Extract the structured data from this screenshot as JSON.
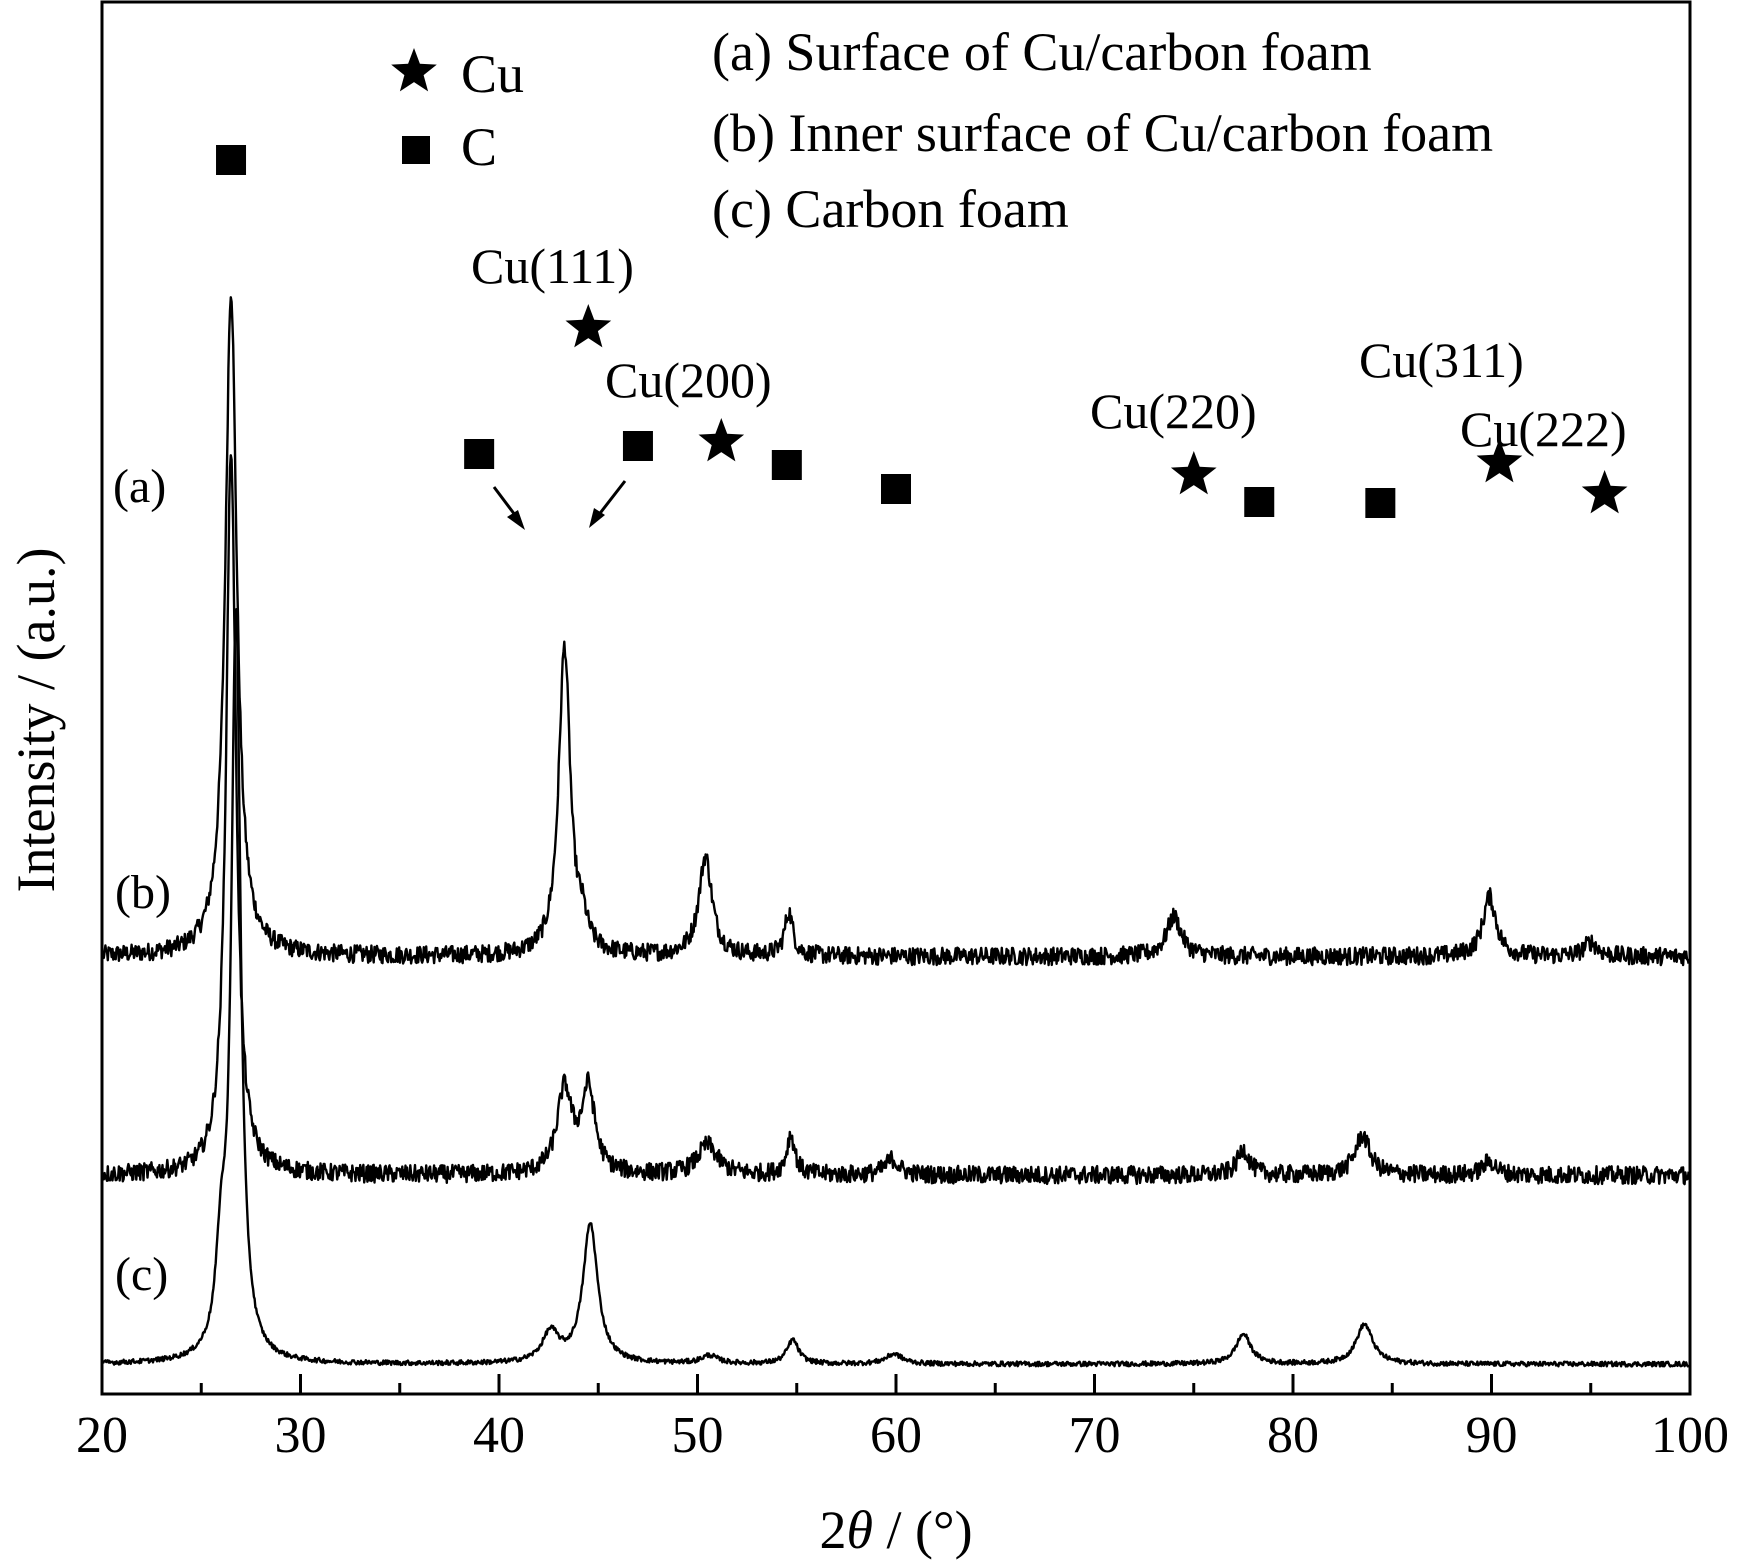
{
  "chart_data": {
    "type": "line",
    "xlabel_prefix": "2",
    "xlabel_theta": "θ",
    "xlabel_suffix": " / (°)",
    "ylabel": "Intensity / (a.u.)",
    "xlim": [
      20,
      100
    ],
    "xticks": [
      20,
      30,
      40,
      50,
      60,
      70,
      80,
      90,
      100
    ],
    "minor_xticks": [
      25,
      35,
      45,
      55,
      65,
      75,
      85,
      95
    ],
    "legend": {
      "placement": "top",
      "markers": [
        {
          "symbol": "star",
          "label": "Cu"
        },
        {
          "symbol": "square",
          "label": "C"
        }
      ],
      "entries": [
        "(a) Surface of Cu/carbon foam",
        "(b) Inner surface of Cu/carbon foam",
        "(c) Carbon foam"
      ]
    },
    "series": [
      {
        "label": "(a)",
        "baseline": 2.2,
        "noise": 0.045,
        "peaks": [
          {
            "x": 26.5,
            "h": 3.35,
            "w": 0.35
          },
          {
            "x": 43.3,
            "h": 1.55,
            "w": 0.35
          },
          {
            "x": 44.2,
            "h": 0.12,
            "w": 0.3
          },
          {
            "x": 50.4,
            "h": 0.5,
            "w": 0.4
          },
          {
            "x": 54.6,
            "h": 0.22,
            "w": 0.25
          },
          {
            "x": 74.0,
            "h": 0.2,
            "w": 0.45
          },
          {
            "x": 89.9,
            "h": 0.3,
            "w": 0.4
          },
          {
            "x": 95.0,
            "h": 0.07,
            "w": 0.4
          }
        ]
      },
      {
        "label": "(b)",
        "baseline": 1.1,
        "noise": 0.045,
        "peaks": [
          {
            "x": 26.5,
            "h": 3.65,
            "w": 0.3
          },
          {
            "x": 43.3,
            "h": 0.42,
            "w": 0.45
          },
          {
            "x": 44.5,
            "h": 0.42,
            "w": 0.4
          },
          {
            "x": 50.5,
            "h": 0.15,
            "w": 0.6
          },
          {
            "x": 54.7,
            "h": 0.2,
            "w": 0.25
          },
          {
            "x": 59.8,
            "h": 0.08,
            "w": 0.4
          },
          {
            "x": 77.5,
            "h": 0.13,
            "w": 0.35
          },
          {
            "x": 83.5,
            "h": 0.2,
            "w": 0.45
          },
          {
            "x": 89.9,
            "h": 0.07,
            "w": 0.4
          }
        ]
      },
      {
        "label": "(c)",
        "baseline": 0.15,
        "noise": 0.012,
        "peaks": [
          {
            "x": 26.0,
            "h": 0.45,
            "w": 0.3
          },
          {
            "x": 26.75,
            "h": 3.75,
            "w": 0.28
          },
          {
            "x": 42.6,
            "h": 0.15,
            "w": 0.5
          },
          {
            "x": 44.6,
            "h": 0.7,
            "w": 0.45
          },
          {
            "x": 50.6,
            "h": 0.04,
            "w": 0.5
          },
          {
            "x": 54.8,
            "h": 0.12,
            "w": 0.35
          },
          {
            "x": 59.9,
            "h": 0.05,
            "w": 0.5
          },
          {
            "x": 77.5,
            "h": 0.15,
            "w": 0.45
          },
          {
            "x": 83.6,
            "h": 0.2,
            "w": 0.5
          }
        ]
      }
    ],
    "peak_labels": [
      "Cu(111)",
      "Cu(200)",
      "Cu(220)",
      "Cu(311)",
      "Cu(222)"
    ],
    "markers_on_a": [
      {
        "symbol": "square",
        "x": 26.5
      },
      {
        "symbol": "square",
        "x": 39.0
      },
      {
        "symbol": "square",
        "x": 47.0
      },
      {
        "symbol": "square",
        "x": 54.5
      },
      {
        "symbol": "square",
        "x": 60.0
      },
      {
        "symbol": "square",
        "x": 78.3
      },
      {
        "symbol": "square",
        "x": 84.4
      },
      {
        "symbol": "star",
        "x": 44.5
      },
      {
        "symbol": "star",
        "x": 51.2
      },
      {
        "symbol": "star",
        "x": 75.0
      },
      {
        "symbol": "star",
        "x": 90.4
      },
      {
        "symbol": "star",
        "x": 95.7
      }
    ]
  }
}
